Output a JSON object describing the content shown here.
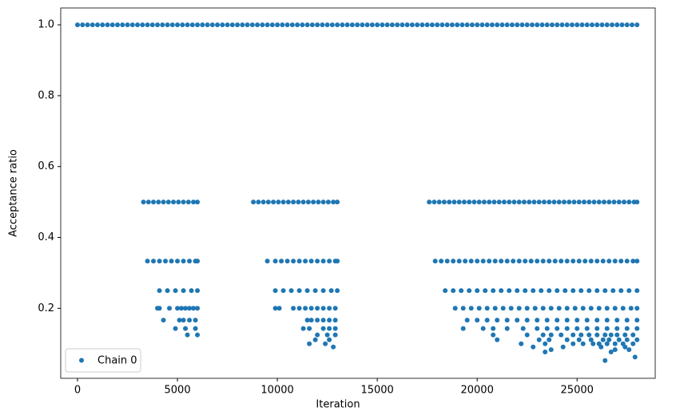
{
  "chart_data": {
    "type": "scatter",
    "xlabel": "Iteration",
    "ylabel": "Acceptance ratio",
    "xlim": [
      -840,
      28910
    ],
    "ylim": [
      0.0025,
      1.0475
    ],
    "xticks": [
      0,
      5000,
      10000,
      15000,
      20000,
      25000
    ],
    "yticks": [
      0.2,
      0.4,
      0.6,
      0.8,
      {
        "value": 1,
        "label": "1.0"
      }
    ],
    "legend": "lower left",
    "series": [
      {
        "name": "Chain 0",
        "color": "#1f77b4",
        "x": [
          0,
          250,
          500,
          750,
          1000,
          1250,
          1500,
          1750,
          2000,
          2250,
          2500,
          2750,
          3000,
          3250,
          3500,
          3750,
          4000,
          4250,
          4500,
          4750,
          5000,
          5250,
          5500,
          5750,
          6000,
          6250,
          6500,
          6750,
          7000,
          7250,
          7500,
          7750,
          8000,
          8250,
          8500,
          8750,
          9000,
          9250,
          9500,
          9750,
          10000,
          10250,
          10500,
          10750,
          11000,
          11250,
          11500,
          11750,
          12000,
          12250,
          12500,
          12750,
          13000,
          13250,
          13500,
          13750,
          14000,
          14250,
          14500,
          14750,
          15000,
          15250,
          15500,
          15750,
          16000,
          16250,
          16500,
          16750,
          17000,
          17250,
          17500,
          17750,
          18000,
          18250,
          18500,
          18750,
          19000,
          19250,
          19500,
          19750,
          20000,
          20250,
          20500,
          20750,
          21000,
          21250,
          21500,
          21750,
          22000,
          22250,
          22500,
          22750,
          23000,
          23250,
          23500,
          23750,
          24000,
          24250,
          24500,
          24750,
          25000,
          25250,
          25500,
          25750,
          26000,
          26250,
          26500,
          26750,
          27000,
          27250,
          27500,
          27750,
          28000,
          3300,
          3550,
          3800,
          4050,
          4300,
          4550,
          4800,
          5050,
          5300,
          5550,
          5800,
          6000,
          8800,
          9050,
          9300,
          9550,
          9800,
          10050,
          10300,
          10550,
          10800,
          11050,
          11300,
          11550,
          11800,
          12050,
          12300,
          12550,
          12800,
          13000,
          17600,
          17850,
          18100,
          18350,
          18600,
          18850,
          19100,
          19350,
          19600,
          19850,
          20100,
          20350,
          20600,
          20850,
          21100,
          21350,
          21600,
          21850,
          22100,
          22350,
          22600,
          22850,
          23100,
          23350,
          23600,
          23850,
          24100,
          24350,
          24600,
          24850,
          25100,
          25350,
          25600,
          25850,
          26100,
          26350,
          26600,
          26850,
          27100,
          27350,
          27600,
          27850,
          28000,
          3500,
          3800,
          4100,
          4400,
          4700,
          5000,
          5300,
          5600,
          5900,
          6000,
          9500,
          9900,
          10200,
          10500,
          10800,
          11100,
          11400,
          11700,
          12000,
          12300,
          12600,
          12900,
          13000,
          17900,
          18200,
          18500,
          18800,
          19100,
          19400,
          19700,
          20000,
          20300,
          20600,
          20900,
          21200,
          21500,
          21800,
          22100,
          22400,
          22700,
          23000,
          23300,
          23600,
          23900,
          24200,
          24500,
          24800,
          25100,
          25400,
          25700,
          26000,
          26300,
          26600,
          26900,
          27200,
          27500,
          27800,
          28000,
          4100,
          4500,
          4900,
          5300,
          5700,
          6000,
          9900,
          10300,
          10700,
          11100,
          11500,
          11900,
          12300,
          12700,
          13000,
          18400,
          18800,
          19200,
          19600,
          20000,
          20400,
          20800,
          21200,
          21600,
          22000,
          22400,
          22800,
          23200,
          23600,
          24000,
          24400,
          24800,
          25200,
          25600,
          26000,
          26400,
          26800,
          27200,
          27600,
          28000,
          4000,
          4100,
          4600,
          5000,
          5200,
          5400,
          5600,
          5800,
          6000,
          9900,
          10100,
          10800,
          11100,
          11400,
          11700,
          12000,
          12300,
          12600,
          12900,
          18900,
          19300,
          19700,
          20100,
          20500,
          20900,
          21300,
          21700,
          22100,
          22500,
          22900,
          23300,
          23700,
          24100,
          24500,
          24900,
          25300,
          25700,
          26100,
          26500,
          26900,
          27300,
          27700,
          28000,
          4300,
          5100,
          5300,
          5600,
          5900,
          11500,
          11700,
          12000,
          12300,
          12600,
          12900,
          19500,
          20000,
          20500,
          21000,
          21500,
          22000,
          22500,
          23000,
          23500,
          24000,
          24500,
          25000,
          25500,
          26000,
          26500,
          27000,
          27500,
          28000,
          4900,
          5400,
          5900,
          11300,
          11600,
          12300,
          12600,
          12900,
          19300,
          20300,
          20800,
          21500,
          22300,
          23000,
          23500,
          24000,
          24500,
          25000,
          25500,
          26000,
          26500,
          27000,
          27500,
          28000,
          5500,
          6000,
          12000,
          12500,
          12900,
          20800,
          22500,
          23300,
          23700,
          24200,
          24800,
          25200,
          25600,
          26000,
          26400,
          26700,
          27000,
          27400,
          27800,
          11900,
          12600,
          21000,
          23100,
          23600,
          24500,
          25100,
          25700,
          26300,
          26600,
          27100,
          27500,
          28000,
          11600,
          12400,
          22200,
          23400,
          24800,
          25300,
          25800,
          26100,
          26500,
          26900,
          27300,
          27800,
          12800,
          22800,
          24300,
          26200,
          27400,
          23700,
          26900,
          27600,
          23400,
          26700,
          27900,
          26400
        ],
        "values": [
          1,
          1,
          1,
          1,
          1,
          1,
          1,
          1,
          1,
          1,
          1,
          1,
          1,
          1,
          1,
          1,
          1,
          1,
          1,
          1,
          1,
          1,
          1,
          1,
          1,
          1,
          1,
          1,
          1,
          1,
          1,
          1,
          1,
          1,
          1,
          1,
          1,
          1,
          1,
          1,
          1,
          1,
          1,
          1,
          1,
          1,
          1,
          1,
          1,
          1,
          1,
          1,
          1,
          1,
          1,
          1,
          1,
          1,
          1,
          1,
          1,
          1,
          1,
          1,
          1,
          1,
          1,
          1,
          1,
          1,
          1,
          1,
          1,
          1,
          1,
          1,
          1,
          1,
          1,
          1,
          1,
          1,
          1,
          1,
          1,
          1,
          1,
          1,
          1,
          1,
          1,
          1,
          1,
          1,
          1,
          1,
          1,
          1,
          1,
          1,
          1,
          1,
          1,
          1,
          1,
          1,
          1,
          1,
          1,
          1,
          1,
          1,
          1,
          0.5,
          0.5,
          0.5,
          0.5,
          0.5,
          0.5,
          0.5,
          0.5,
          0.5,
          0.5,
          0.5,
          0.5,
          0.5,
          0.5,
          0.5,
          0.5,
          0.5,
          0.5,
          0.5,
          0.5,
          0.5,
          0.5,
          0.5,
          0.5,
          0.5,
          0.5,
          0.5,
          0.5,
          0.5,
          0.5,
          0.5,
          0.5,
          0.5,
          0.5,
          0.5,
          0.5,
          0.5,
          0.5,
          0.5,
          0.5,
          0.5,
          0.5,
          0.5,
          0.5,
          0.5,
          0.5,
          0.5,
          0.5,
          0.5,
          0.5,
          0.5,
          0.5,
          0.5,
          0.5,
          0.5,
          0.5,
          0.5,
          0.5,
          0.5,
          0.5,
          0.5,
          0.5,
          0.5,
          0.5,
          0.5,
          0.5,
          0.5,
          0.5,
          0.5,
          0.5,
          0.5,
          0.5,
          0.5,
          0.3333,
          0.3333,
          0.3333,
          0.3333,
          0.3333,
          0.3333,
          0.3333,
          0.3333,
          0.3333,
          0.3333,
          0.3333,
          0.3333,
          0.3333,
          0.3333,
          0.3333,
          0.3333,
          0.3333,
          0.3333,
          0.3333,
          0.3333,
          0.3333,
          0.3333,
          0.3333,
          0.3333,
          0.3333,
          0.3333,
          0.3333,
          0.3333,
          0.3333,
          0.3333,
          0.3333,
          0.3333,
          0.3333,
          0.3333,
          0.3333,
          0.3333,
          0.3333,
          0.3333,
          0.3333,
          0.3333,
          0.3333,
          0.3333,
          0.3333,
          0.3333,
          0.3333,
          0.3333,
          0.3333,
          0.3333,
          0.3333,
          0.3333,
          0.3333,
          0.3333,
          0.3333,
          0.3333,
          0.3333,
          0.3333,
          0.3333,
          0.3333,
          0.25,
          0.25,
          0.25,
          0.25,
          0.25,
          0.25,
          0.25,
          0.25,
          0.25,
          0.25,
          0.25,
          0.25,
          0.25,
          0.25,
          0.25,
          0.25,
          0.25,
          0.25,
          0.25,
          0.25,
          0.25,
          0.25,
          0.25,
          0.25,
          0.25,
          0.25,
          0.25,
          0.25,
          0.25,
          0.25,
          0.25,
          0.25,
          0.25,
          0.25,
          0.25,
          0.25,
          0.25,
          0.25,
          0.25,
          0.25,
          0.2,
          0.2,
          0.2,
          0.2,
          0.2,
          0.2,
          0.2,
          0.2,
          0.2,
          0.2,
          0.2,
          0.2,
          0.2,
          0.2,
          0.2,
          0.2,
          0.2,
          0.2,
          0.2,
          0.2,
          0.2,
          0.2,
          0.2,
          0.2,
          0.2,
          0.2,
          0.2,
          0.2,
          0.2,
          0.2,
          0.2,
          0.2,
          0.2,
          0.2,
          0.2,
          0.2,
          0.2,
          0.2,
          0.2,
          0.2,
          0.2,
          0.2,
          0.2,
          0.1667,
          0.1667,
          0.1667,
          0.1667,
          0.1667,
          0.1667,
          0.1667,
          0.1667,
          0.1667,
          0.1667,
          0.1667,
          0.1667,
          0.1667,
          0.1667,
          0.1667,
          0.1667,
          0.1667,
          0.1667,
          0.1667,
          0.1667,
          0.1667,
          0.1667,
          0.1667,
          0.1667,
          0.1667,
          0.1667,
          0.1667,
          0.1667,
          0.1667,
          0.1429,
          0.1429,
          0.1429,
          0.1429,
          0.1429,
          0.1429,
          0.1429,
          0.1429,
          0.1429,
          0.1429,
          0.1429,
          0.1429,
          0.1429,
          0.1429,
          0.1429,
          0.1429,
          0.1429,
          0.1429,
          0.1429,
          0.1429,
          0.1429,
          0.1429,
          0.1429,
          0.1429,
          0.125,
          0.125,
          0.125,
          0.125,
          0.125,
          0.125,
          0.125,
          0.125,
          0.125,
          0.125,
          0.125,
          0.125,
          0.125,
          0.125,
          0.125,
          0.125,
          0.125,
          0.125,
          0.125,
          0.1111,
          0.1111,
          0.1111,
          0.1111,
          0.1111,
          0.1111,
          0.1111,
          0.1111,
          0.1111,
          0.1111,
          0.1111,
          0.1111,
          0.1111,
          0.1,
          0.1,
          0.1,
          0.1,
          0.1,
          0.1,
          0.1,
          0.1,
          0.1,
          0.1,
          0.1,
          0.1,
          0.0909,
          0.0909,
          0.0909,
          0.0909,
          0.0909,
          0.0833,
          0.0833,
          0.0833,
          0.0769,
          0.0769,
          0.0625,
          0.0526
        ]
      }
    ]
  }
}
